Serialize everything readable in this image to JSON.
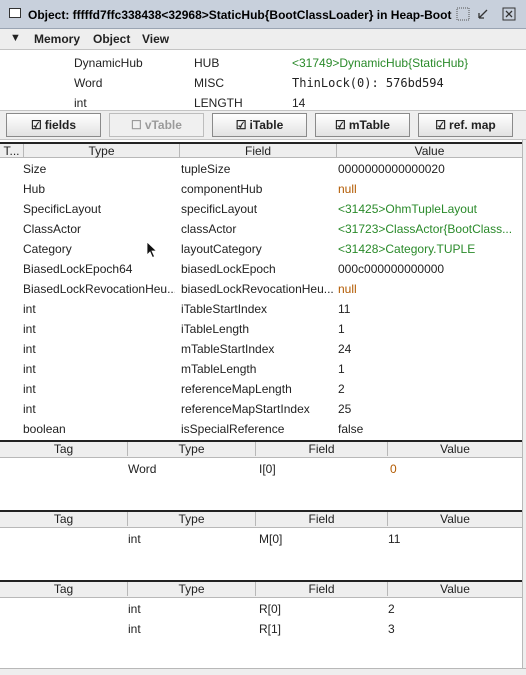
{
  "window": {
    "title": "Object: fffffd7ffc338438<32968>StaticHub{BootClassLoader} in Heap-Boot"
  },
  "menubar": {
    "items": [
      "Memory",
      "Object",
      "View"
    ]
  },
  "header": {
    "rows": [
      {
        "type": "DynamicHub",
        "name": "HUB",
        "value": "<31749>DynamicHub{StaticHub}"
      },
      {
        "type": "Word",
        "name": "MISC",
        "value": "ThinLock(0): 576bd594"
      },
      {
        "type": "int",
        "name": "LENGTH",
        "value": "14"
      }
    ]
  },
  "toolbar": {
    "buttons": [
      {
        "label": "fields",
        "checked": true,
        "enabled": true
      },
      {
        "label": "vTable",
        "checked": false,
        "enabled": false
      },
      {
        "label": "iTable",
        "checked": true,
        "enabled": true
      },
      {
        "label": "mTable",
        "checked": true,
        "enabled": true
      },
      {
        "label": "ref. map",
        "checked": true,
        "enabled": true
      }
    ]
  },
  "fields_table": {
    "columns": [
      "T...",
      "Type",
      "Field",
      "Value"
    ],
    "rows": [
      {
        "type": "Size",
        "field": "tupleSize",
        "value": "0000000000000020",
        "value_style": "plain"
      },
      {
        "type": "Hub",
        "field": "componentHub",
        "value": "null",
        "value_style": "orange"
      },
      {
        "type": "SpecificLayout",
        "field": "specificLayout",
        "value": "<31425>OhmTupleLayout",
        "value_style": "green"
      },
      {
        "type": "ClassActor",
        "field": "classActor",
        "value": "<31723>ClassActor{BootClass...",
        "value_style": "green"
      },
      {
        "type": "Category",
        "field": "layoutCategory",
        "value": "<31428>Category.TUPLE",
        "value_style": "green"
      },
      {
        "type": "BiasedLockEpoch64",
        "field": "biasedLockEpoch",
        "value": "000c000000000000",
        "value_style": "plain"
      },
      {
        "type": "BiasedLockRevocationHeu...",
        "field": "biasedLockRevocationHeu...",
        "value": "null",
        "value_style": "orange"
      },
      {
        "type": "int",
        "field": "iTableStartIndex",
        "value": "11",
        "value_style": "plain"
      },
      {
        "type": "int",
        "field": "iTableLength",
        "value": "1",
        "value_style": "plain"
      },
      {
        "type": "int",
        "field": "mTableStartIndex",
        "value": "24",
        "value_style": "plain"
      },
      {
        "type": "int",
        "field": "mTableLength",
        "value": "1",
        "value_style": "plain"
      },
      {
        "type": "int",
        "field": "referenceMapLength",
        "value": "2",
        "value_style": "plain"
      },
      {
        "type": "int",
        "field": "referenceMapStartIndex",
        "value": "25",
        "value_style": "plain"
      },
      {
        "type": "boolean",
        "field": "isSpecialReference",
        "value": "false",
        "value_style": "plain"
      }
    ]
  },
  "itable": {
    "columns": [
      "Tag",
      "Type",
      "Field",
      "Value"
    ],
    "rows": [
      {
        "tag": "",
        "type": "Word",
        "field": "I[0]",
        "value": "0"
      }
    ]
  },
  "mtable": {
    "columns": [
      "Tag",
      "Type",
      "Field",
      "Value"
    ],
    "rows": [
      {
        "tag": "",
        "type": "int",
        "field": "M[0]",
        "value": "11"
      }
    ]
  },
  "refmap": {
    "columns": [
      "Tag",
      "Type",
      "Field",
      "Value"
    ],
    "rows": [
      {
        "tag": "",
        "type": "int",
        "field": "R[0]",
        "value": "2"
      },
      {
        "tag": "",
        "type": "int",
        "field": "R[1]",
        "value": "3"
      }
    ]
  },
  "colors": {
    "green_value": "#2a8a2a",
    "orange_value": "#b25a00",
    "titlebar": "#c8d0dc",
    "chrome": "#eeeeee"
  }
}
